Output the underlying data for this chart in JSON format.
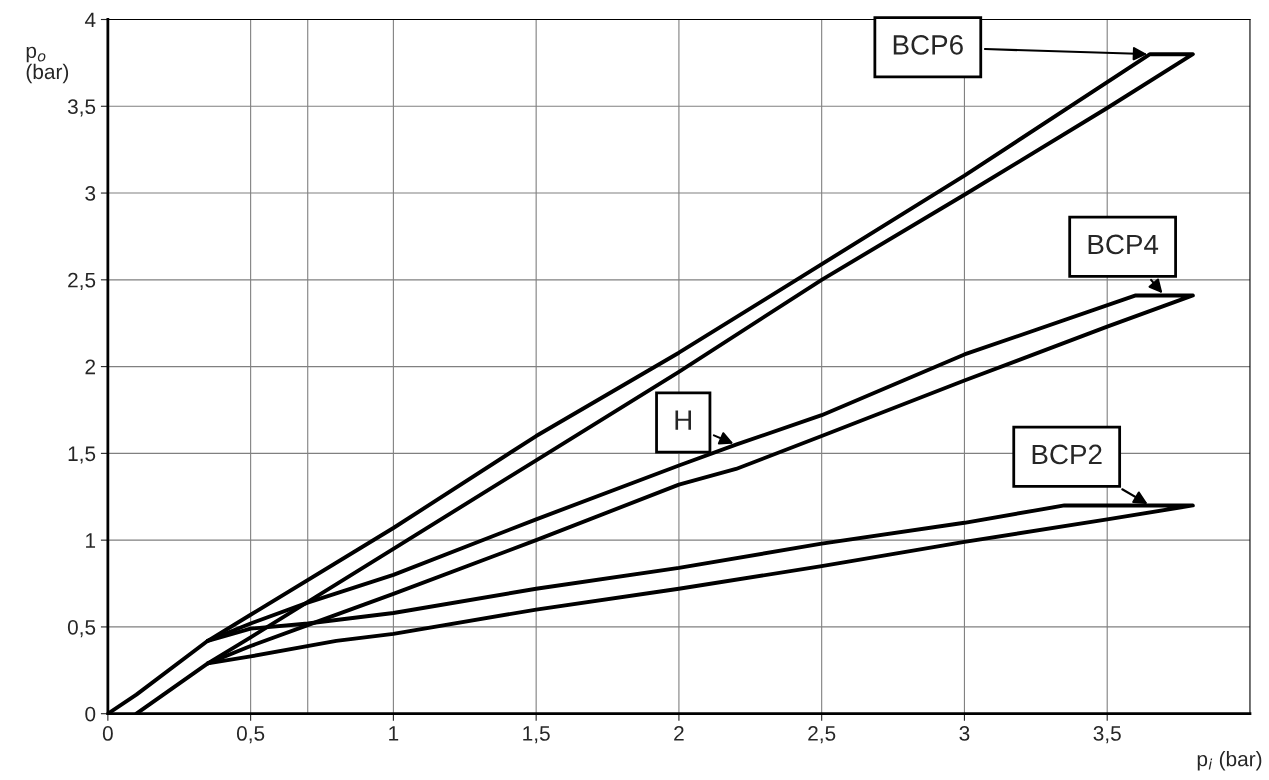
{
  "chart_data": {
    "type": "line",
    "xlabel": "p$_{i}$ (bar)",
    "ylabel": "p$_{o}$\n(bar)",
    "xlim": [
      0,
      4
    ],
    "ylim": [
      0,
      4
    ],
    "xticks": [
      0,
      {
        "value": 0.5,
        "label": "0,5"
      },
      1,
      {
        "value": 1.5,
        "label": "1,5"
      },
      2,
      {
        "value": 2.5,
        "label": "2,5"
      },
      3,
      {
        "value": 3.5,
        "label": "3,5"
      }
    ],
    "yticks": [
      0,
      {
        "value": 0.5,
        "label": "0,5"
      },
      1,
      {
        "value": 1.5,
        "label": "1,5"
      },
      2,
      {
        "value": 2.5,
        "label": "2,5"
      },
      3,
      {
        "value": 3.5,
        "label": "3,5"
      },
      4
    ],
    "grid": true,
    "marker": "none",
    "line_style": "solid",
    "ref_lines": [
      {
        "axis": "x",
        "value": 0.7,
        "label": null,
        "color": "#808080"
      }
    ],
    "series": [
      {
        "color": "#000000",
        "x": [
          0.1,
          0.35,
          0.5,
          1,
          1.5,
          2,
          2.5,
          3,
          3.5,
          3.8,
          3.65,
          3,
          2,
          1.5,
          1,
          0.5,
          0.35,
          0.1,
          0
        ],
        "values": [
          0,
          0.29,
          0.44,
          0.95,
          1.46,
          1.97,
          2.5,
          2.99,
          3.49,
          3.8,
          3.8,
          3.1,
          2.08,
          1.6,
          1.07,
          0.57,
          0.42,
          0.11,
          0
        ]
      },
      {
        "color": "#000000",
        "x": [
          0.35,
          0.5,
          0.7,
          1,
          1.5,
          2,
          2.2,
          2.5,
          3,
          3.5,
          3.8,
          3.6,
          3,
          2.5,
          2.2,
          2,
          1.5,
          1,
          0.7,
          0.5,
          0.35
        ],
        "values": [
          0.29,
          0.39,
          0.51,
          0.69,
          1.0,
          1.32,
          1.41,
          1.6,
          1.92,
          2.23,
          2.41,
          2.41,
          2.07,
          1.72,
          1.55,
          1.43,
          1.12,
          0.8,
          0.64,
          0.52,
          0.42
        ]
      },
      {
        "color": "#000000",
        "x": [
          0.35,
          0.5,
          0.8,
          1,
          1.5,
          2,
          2.5,
          3,
          3.5,
          3.8,
          3.35,
          3,
          2.5,
          2,
          1.5,
          1,
          0.7,
          0.5,
          0.35
        ],
        "values": [
          0.29,
          0.33,
          0.42,
          0.46,
          0.6,
          0.72,
          0.85,
          0.99,
          1.12,
          1.2,
          1.2,
          1.1,
          0.98,
          0.84,
          0.72,
          0.58,
          0.52,
          0.49,
          0.42
        ]
      }
    ],
    "annotations": [
      {
        "text": "BCP6",
        "x": 3.65,
        "y": 3.8
      },
      {
        "text": "BCP4",
        "x": 3.7,
        "y": 2.41
      },
      {
        "text": "BCP2",
        "x": 3.65,
        "y": 1.2
      },
      {
        "text": "H",
        "x": 2.2,
        "y": 1.55
      }
    ]
  }
}
